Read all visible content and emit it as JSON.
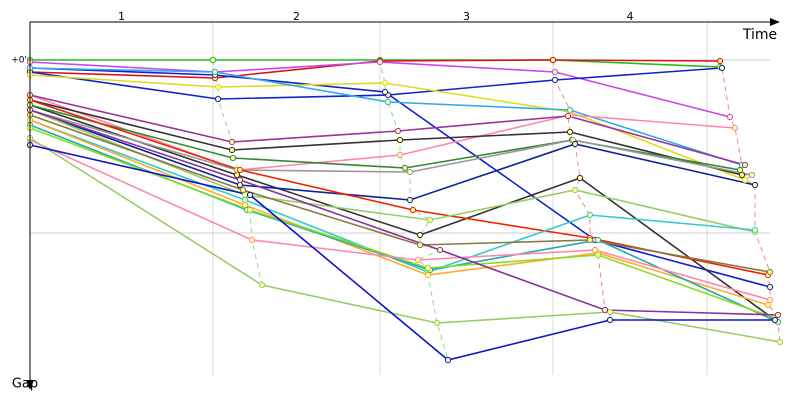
{
  "chart_data": {
    "type": "line",
    "x_label": "Time",
    "y_label": "Gap",
    "categories": [
      "1",
      "2",
      "3",
      "4"
    ],
    "xlim": [
      0,
      75
    ],
    "xticks": [
      18.3,
      35,
      52.3,
      67.7
    ],
    "ylim": [
      -0.38,
      3.15
    ],
    "yticks": [
      {
        "value": 0,
        "label": "+0'"
      },
      {
        "value": 1.73,
        "label": null
      }
    ],
    "grid": true,
    "series": [
      {
        "color": "#22bb22",
        "x": [
          0,
          18.3,
          35,
          52.3,
          69
        ],
        "values": [
          0,
          0,
          0,
          0,
          0.07
        ]
      },
      {
        "color": "#dd1111",
        "x": [
          0,
          18.5,
          35,
          52.3,
          69
        ],
        "values": [
          0.12,
          0.18,
          0.01,
          0,
          0.01
        ]
      },
      {
        "color": "#cc44ee",
        "x": [
          0,
          18.5,
          35,
          52.5,
          70
        ],
        "values": [
          0.02,
          0.12,
          0.02,
          0.12,
          0.57
        ]
      },
      {
        "color": "#1122cc",
        "x": [
          0,
          18.8,
          35.8,
          52.5,
          69.2
        ],
        "values": [
          0.12,
          0.39,
          0.35,
          0.2,
          0.08
        ]
      },
      {
        "color": "#1122cc",
        "x": [
          0,
          18.5,
          35.5,
          56.5,
          74
        ],
        "values": [
          0.08,
          0.15,
          0.32,
          1.8,
          2.27
        ]
      },
      {
        "color": "#dddd22",
        "x": [
          0,
          18.8,
          35.5,
          54,
          71.5
        ],
        "values": [
          0.15,
          0.27,
          0.23,
          0.52,
          1.2
        ]
      },
      {
        "color": "#33aaee",
        "x": [
          0,
          18.5,
          35.8,
          54,
          71.2
        ],
        "values": [
          0.08,
          0.12,
          0.42,
          0.5,
          1.05
        ]
      },
      {
        "color": "#ff88aa",
        "x": [
          0,
          20.8,
          37,
          54,
          70.5
        ],
        "values": [
          0.35,
          1.1,
          0.95,
          0.55,
          0.68
        ]
      },
      {
        "color": "#993399",
        "x": [
          0,
          20.2,
          36.8,
          53.8,
          71.5
        ],
        "values": [
          0.35,
          0.82,
          0.71,
          0.56,
          1.05
        ]
      },
      {
        "color": "#333333",
        "x": [
          0,
          20.2,
          37,
          54,
          71.2
        ],
        "values": [
          0.4,
          0.9,
          0.8,
          0.72,
          1.15
        ]
      },
      {
        "color": "#333333",
        "x": [
          0,
          20.7,
          39,
          55,
          74.5
        ],
        "values": [
          0.45,
          1.15,
          1.75,
          1.18,
          2.6
        ]
      },
      {
        "color": "#338833",
        "x": [
          0,
          20.3,
          37.5,
          54.2,
          71
        ],
        "values": [
          0.45,
          0.98,
          1.08,
          0.8,
          1.1
        ]
      },
      {
        "color": "#999999",
        "x": [
          0,
          20.7,
          38,
          54.3,
          72.2
        ],
        "values": [
          0.5,
          1.1,
          1.12,
          0.8,
          1.15
        ]
      },
      {
        "color": "#112299",
        "x": [
          0,
          21,
          38,
          54.5,
          72.5
        ],
        "values": [
          0.5,
          1.25,
          1.4,
          0.84,
          1.25
        ]
      },
      {
        "color": "#ee2200",
        "x": [
          0,
          21,
          38.3,
          56,
          73.8
        ],
        "values": [
          0.4,
          1.1,
          1.5,
          1.78,
          2.15
        ]
      },
      {
        "color": "#99cc66",
        "x": [
          0,
          21.5,
          40,
          54.5,
          72.5
        ],
        "values": [
          0.5,
          1.35,
          1.6,
          1.3,
          1.72
        ]
      },
      {
        "color": "#33cccc",
        "x": [
          0,
          21.5,
          39.8,
          56,
          72.5
        ],
        "values": [
          0.6,
          1.4,
          2.12,
          1.55,
          1.7
        ]
      },
      {
        "color": "#887744",
        "x": [
          0,
          21.3,
          39,
          56,
          74
        ],
        "values": [
          0.55,
          1.3,
          1.85,
          1.8,
          2.12
        ]
      },
      {
        "color": "#ffaa33",
        "x": [
          0,
          21.5,
          39.8,
          56.8,
          73.8
        ],
        "values": [
          0.6,
          1.45,
          2.15,
          1.93,
          2.45
        ]
      },
      {
        "color": "#22aaaa",
        "x": [
          0,
          21.7,
          40,
          56.8,
          74.8
        ],
        "values": [
          0.65,
          1.5,
          2.1,
          1.8,
          2.62
        ]
      },
      {
        "color": "#88dd22",
        "x": [
          0,
          22,
          39.8,
          56.8,
          74.5
        ],
        "values": [
          0.68,
          1.5,
          2.08,
          1.95,
          2.58
        ]
      },
      {
        "color": "#ff88aa",
        "x": [
          0,
          22.2,
          38.8,
          56.5,
          74
        ],
        "values": [
          0.8,
          1.8,
          2,
          1.9,
          2.4
        ]
      },
      {
        "color": "#99cc66",
        "x": [
          0,
          23.2,
          40.7,
          58,
          75
        ],
        "values": [
          0.78,
          2.25,
          2.63,
          2.52,
          2.82
        ]
      },
      {
        "color": "#1111cc",
        "x": [
          0,
          22,
          41.8,
          58,
          74.5
        ],
        "values": [
          0.85,
          1.35,
          3,
          2.6,
          2.6
        ]
      },
      {
        "color": "#883399",
        "x": [
          0,
          21,
          41,
          57.5,
          74.8
        ],
        "values": [
          0.5,
          1.2,
          1.9,
          2.5,
          2.55
        ]
      }
    ]
  }
}
